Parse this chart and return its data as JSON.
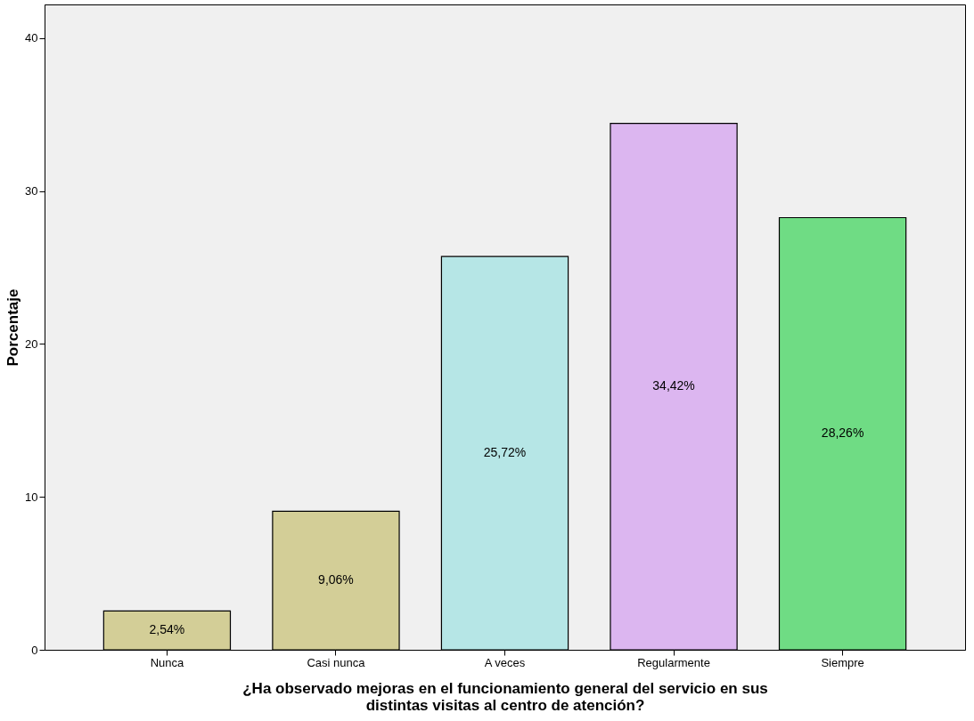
{
  "chart_data": {
    "type": "bar",
    "categories": [
      "Nunca",
      "Casi nunca",
      "A veces",
      "Regularmente",
      "Siempre"
    ],
    "values": [
      2.54,
      9.06,
      25.72,
      34.42,
      28.26
    ],
    "colors": [
      "#d3ce97",
      "#d3ce97",
      "#b6e6e6",
      "#dcb6f0",
      "#6fdc84"
    ],
    "value_labels": [
      "2,54%",
      "9,06%",
      "25,72%",
      "34,42%",
      "28,26%"
    ],
    "xlabel": "¿Ha observado mejoras en el funcionamiento general del servicio en sus\ndistintas visitas al centro de atención?",
    "ylabel": "Porcentaje",
    "ylim": [
      0,
      42.2
    ],
    "yticks": [
      0,
      10,
      20,
      30,
      40
    ],
    "grid": false
  }
}
